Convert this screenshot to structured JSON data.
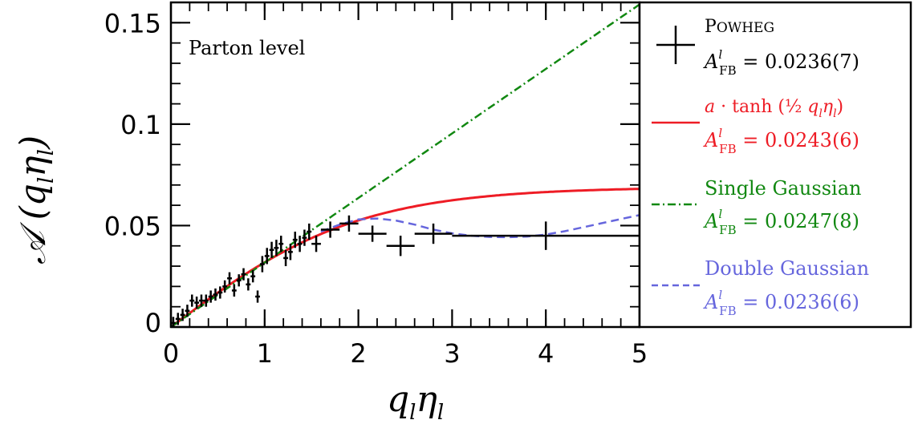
{
  "chart_data": {
    "type": "scatter",
    "title": "",
    "annotation": "Parton level",
    "xlabel": "q_l η_l",
    "ylabel": "A(q_l η_l)",
    "xlim": [
      0,
      5
    ],
    "ylim": [
      0,
      0.16
    ],
    "x_ticks": [
      0,
      1,
      2,
      3,
      4,
      5
    ],
    "y_ticks": [
      0,
      0.05,
      0.1,
      0.15
    ],
    "x_tick_labels": [
      "0",
      "1",
      "2",
      "3",
      "4",
      "5"
    ],
    "y_tick_labels": [
      "0",
      "0.05",
      "0.1",
      "0.15"
    ],
    "grid": false,
    "legend_position": "right-outside",
    "series": [
      {
        "name": "Powheg",
        "kind": "points-with-errors",
        "color": "#000000",
        "legend_stat": "A_FB^l = 0.0236(7)",
        "points": [
          {
            "x": 0.025,
            "y": 0.002,
            "xerr": 0.025,
            "yerr": 0.003
          },
          {
            "x": 0.075,
            "y": 0.004,
            "xerr": 0.025,
            "yerr": 0.003
          },
          {
            "x": 0.125,
            "y": 0.006,
            "xerr": 0.025,
            "yerr": 0.003
          },
          {
            "x": 0.175,
            "y": 0.008,
            "xerr": 0.025,
            "yerr": 0.003
          },
          {
            "x": 0.225,
            "y": 0.013,
            "xerr": 0.025,
            "yerr": 0.003
          },
          {
            "x": 0.275,
            "y": 0.012,
            "xerr": 0.025,
            "yerr": 0.003
          },
          {
            "x": 0.325,
            "y": 0.013,
            "xerr": 0.025,
            "yerr": 0.003
          },
          {
            "x": 0.375,
            "y": 0.013,
            "xerr": 0.025,
            "yerr": 0.003
          },
          {
            "x": 0.425,
            "y": 0.015,
            "xerr": 0.025,
            "yerr": 0.003
          },
          {
            "x": 0.475,
            "y": 0.016,
            "xerr": 0.025,
            "yerr": 0.003
          },
          {
            "x": 0.525,
            "y": 0.017,
            "xerr": 0.025,
            "yerr": 0.003
          },
          {
            "x": 0.575,
            "y": 0.02,
            "xerr": 0.025,
            "yerr": 0.003
          },
          {
            "x": 0.625,
            "y": 0.024,
            "xerr": 0.025,
            "yerr": 0.003
          },
          {
            "x": 0.675,
            "y": 0.018,
            "xerr": 0.025,
            "yerr": 0.003
          },
          {
            "x": 0.725,
            "y": 0.023,
            "xerr": 0.025,
            "yerr": 0.003
          },
          {
            "x": 0.775,
            "y": 0.026,
            "xerr": 0.025,
            "yerr": 0.003
          },
          {
            "x": 0.825,
            "y": 0.021,
            "xerr": 0.025,
            "yerr": 0.003
          },
          {
            "x": 0.875,
            "y": 0.025,
            "xerr": 0.025,
            "yerr": 0.003
          },
          {
            "x": 0.925,
            "y": 0.015,
            "xerr": 0.025,
            "yerr": 0.003
          },
          {
            "x": 0.975,
            "y": 0.031,
            "xerr": 0.025,
            "yerr": 0.004
          },
          {
            "x": 1.025,
            "y": 0.035,
            "xerr": 0.025,
            "yerr": 0.004
          },
          {
            "x": 1.075,
            "y": 0.038,
            "xerr": 0.025,
            "yerr": 0.004
          },
          {
            "x": 1.125,
            "y": 0.039,
            "xerr": 0.025,
            "yerr": 0.004
          },
          {
            "x": 1.175,
            "y": 0.041,
            "xerr": 0.025,
            "yerr": 0.004
          },
          {
            "x": 1.225,
            "y": 0.034,
            "xerr": 0.025,
            "yerr": 0.004
          },
          {
            "x": 1.275,
            "y": 0.037,
            "xerr": 0.025,
            "yerr": 0.004
          },
          {
            "x": 1.325,
            "y": 0.043,
            "xerr": 0.025,
            "yerr": 0.004
          },
          {
            "x": 1.375,
            "y": 0.041,
            "xerr": 0.025,
            "yerr": 0.004
          },
          {
            "x": 1.425,
            "y": 0.044,
            "xerr": 0.025,
            "yerr": 0.004
          },
          {
            "x": 1.475,
            "y": 0.047,
            "xerr": 0.025,
            "yerr": 0.004
          },
          {
            "x": 1.55,
            "y": 0.041,
            "xerr": 0.05,
            "yerr": 0.004
          },
          {
            "x": 1.7,
            "y": 0.048,
            "xerr": 0.1,
            "yerr": 0.004
          },
          {
            "x": 1.9,
            "y": 0.051,
            "xerr": 0.1,
            "yerr": 0.004
          },
          {
            "x": 2.15,
            "y": 0.046,
            "xerr": 0.15,
            "yerr": 0.004
          },
          {
            "x": 2.45,
            "y": 0.04,
            "xerr": 0.15,
            "yerr": 0.005
          },
          {
            "x": 2.8,
            "y": 0.046,
            "xerr": 0.2,
            "yerr": 0.005
          },
          {
            "x": 4.0,
            "y": 0.045,
            "xerr": 1.0,
            "yerr": 0.007
          }
        ]
      },
      {
        "name": "a·tanh(½ q_l η_l)",
        "kind": "function",
        "function": "tanh",
        "a": 0.069,
        "color": "#ee1c25",
        "dash": "solid",
        "legend_stat": "A_FB^l = 0.0243(6)"
      },
      {
        "name": "Single Gaussian",
        "kind": "function",
        "function": "linear",
        "slope": 0.0318,
        "color": "#118811",
        "dash": "dashdot",
        "legend_stat": "A_FB^l = 0.0247(8)"
      },
      {
        "name": "Double Gaussian",
        "kind": "curve",
        "color": "#6666dd",
        "dash": "dashed",
        "legend_stat": "A_FB^l = 0.0236(6)",
        "x": [
          1.6,
          1.8,
          2.0,
          2.2,
          2.4,
          2.6,
          2.8,
          3.0,
          3.2,
          3.4,
          3.6,
          3.8,
          4.0,
          4.2,
          4.4,
          4.6,
          4.8,
          5.0
        ],
        "y": [
          0.047,
          0.0505,
          0.053,
          0.0535,
          0.0525,
          0.0505,
          0.048,
          0.0462,
          0.045,
          0.0444,
          0.0443,
          0.0446,
          0.0456,
          0.0472,
          0.0492,
          0.0512,
          0.0532,
          0.0552
        ]
      }
    ]
  }
}
